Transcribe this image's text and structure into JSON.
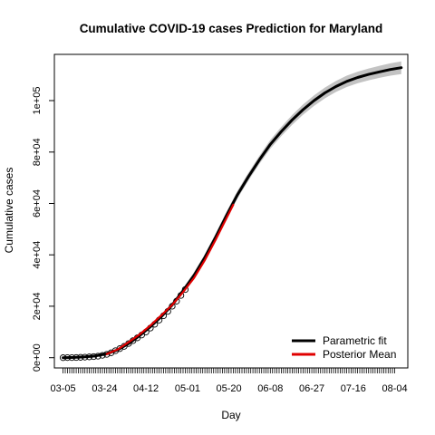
{
  "chart_data": {
    "type": "line",
    "title": "Cumulative COVID-19 cases Prediction for Maryland",
    "xlabel": "Day",
    "ylabel": "Cumulative cases",
    "x_tick_labels": [
      "03-05",
      "03-24",
      "04-12",
      "05-01",
      "05-20",
      "06-08",
      "06-27",
      "07-16",
      "08-04"
    ],
    "x_ticks_day_index": [
      0,
      19,
      38,
      57,
      76,
      95,
      114,
      133,
      152
    ],
    "y_ticks": [
      0,
      20000,
      40000,
      60000,
      80000,
      100000
    ],
    "y_tick_labels": [
      "0e+00",
      "2e+04",
      "4e+04",
      "6e+04",
      "8e+04",
      "1e+05"
    ],
    "xlim": [
      -4,
      158
    ],
    "ylim": [
      -4000,
      118000
    ],
    "legend": {
      "position": "bottom-right",
      "entries": [
        {
          "label": "Parametric fit",
          "color": "#000000"
        },
        {
          "label": "Posterior Mean",
          "color": "#e00000"
        }
      ]
    },
    "series": [
      {
        "name": "Parametric fit",
        "color": "#000000",
        "x": [
          0,
          5,
          10,
          15,
          20,
          25,
          30,
          35,
          40,
          45,
          50,
          55,
          60,
          65,
          70,
          75,
          80,
          85,
          90,
          95,
          100,
          105,
          110,
          115,
          120,
          125,
          130,
          135,
          140,
          145,
          150,
          155
        ],
        "y": [
          0,
          100,
          300,
          700,
          1500,
          3000,
          5500,
          8500,
          12000,
          16000,
          20500,
          26000,
          32000,
          39000,
          47000,
          55500,
          63500,
          70500,
          77000,
          83000,
          88000,
          92500,
          96500,
          100000,
          103000,
          105500,
          107500,
          109000,
          110200,
          111200,
          112100,
          112800
        ]
      },
      {
        "name": "Posterior Mean",
        "color": "#e00000",
        "x": [
          20,
          25,
          30,
          35,
          40,
          45,
          50,
          55,
          60,
          65,
          70,
          75,
          78
        ],
        "y": [
          1400,
          3200,
          6000,
          9000,
          12500,
          16500,
          20500,
          25500,
          31000,
          38000,
          46000,
          54500,
          59500
        ]
      }
    ],
    "confidence_band": {
      "color": "#bdbdbd",
      "x": [
        0,
        15,
        30,
        45,
        60,
        70,
        80,
        90,
        100,
        110,
        120,
        130,
        140,
        150,
        155
      ],
      "half_width": [
        0,
        200,
        400,
        800,
        1200,
        1400,
        1500,
        1600,
        1800,
        2000,
        2100,
        2200,
        2300,
        2400,
        2500
      ]
    },
    "observed_points": {
      "marker": "open-circle",
      "x": [
        0,
        2,
        4,
        6,
        8,
        10,
        12,
        14,
        16,
        18,
        20,
        22,
        24,
        26,
        28,
        30,
        32,
        34,
        36,
        38,
        40,
        42,
        44,
        46,
        48,
        50,
        52,
        54,
        56
      ],
      "y": [
        0,
        10,
        30,
        60,
        110,
        200,
        300,
        420,
        600,
        900,
        1300,
        1900,
        2700,
        3500,
        4400,
        5500,
        6600,
        7700,
        8800,
        10000,
        11500,
        13000,
        14600,
        16300,
        18000,
        20000,
        22000,
        24200,
        26500
      ]
    }
  }
}
